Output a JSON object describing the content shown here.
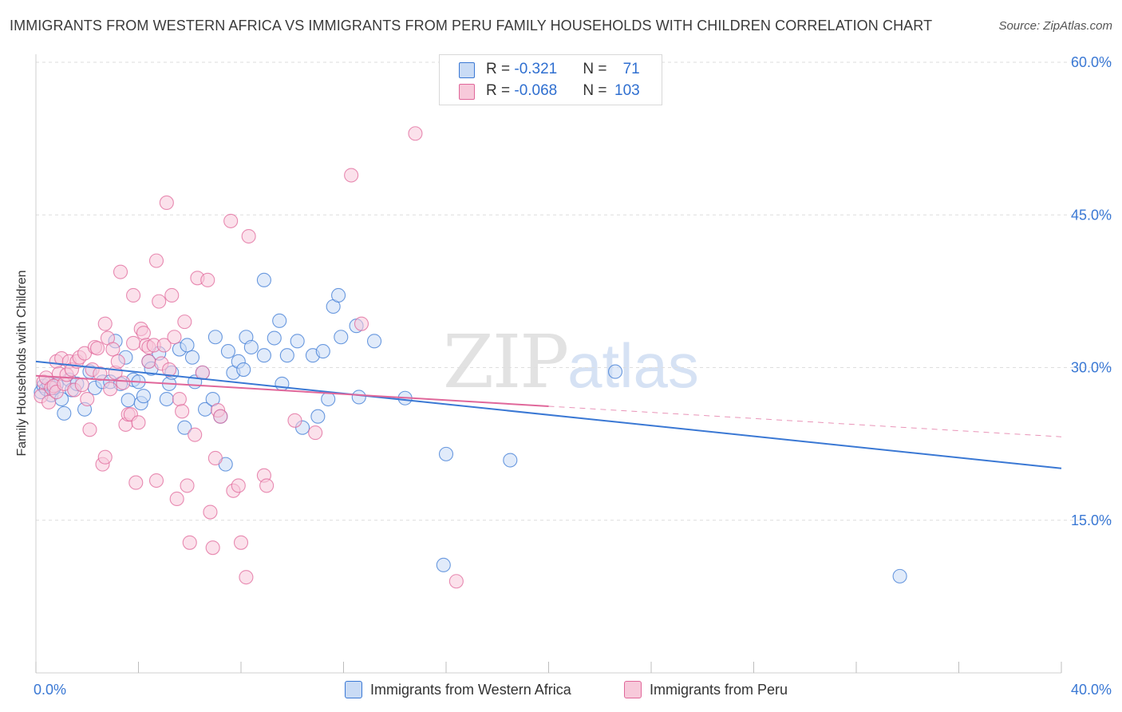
{
  "title": "IMMIGRANTS FROM WESTERN AFRICA VS IMMIGRANTS FROM PERU FAMILY HOUSEHOLDS WITH CHILDREN CORRELATION CHART",
  "source": "Source: ZipAtlas.com",
  "watermark": {
    "part1": "ZIP",
    "part2": "atlas"
  },
  "colors": {
    "blue": "#3a78d4",
    "blue_fill": "#c9dbf5",
    "pink": "#e0679a",
    "pink_fill": "#f7c9da",
    "tick_label": "#3a78d4",
    "grid": "#dcdcdc"
  },
  "legend_top": {
    "rows": [
      {
        "r_label": "R = ",
        "r_value": "-0.321",
        "n_label": "N = ",
        "n_value": "71",
        "color": "#3a78d4"
      },
      {
        "r_label": "R = ",
        "r_value": "-0.068",
        "n_label": "N = ",
        "n_value": "103",
        "color": "#e0679a"
      }
    ]
  },
  "chart_data": {
    "type": "scatter",
    "ylabel": "Family Households with Children",
    "xlim": [
      0,
      40
    ],
    "ylim": [
      0,
      60
    ],
    "y_ticks": [
      {
        "value": 15,
        "label": "15.0%"
      },
      {
        "value": 30,
        "label": "30.0%"
      },
      {
        "value": 45,
        "label": "45.0%"
      },
      {
        "value": 60,
        "label": "60.0%"
      }
    ],
    "x_tick_labels": [
      {
        "value": 0,
        "label": "0.0%"
      },
      {
        "value": 40,
        "label": "40.0%"
      }
    ],
    "grid": true,
    "legend": "bottom",
    "series": [
      {
        "name": "Immigrants from Western Africa",
        "color": "#3a78d4",
        "trend": {
          "x": [
            0,
            40
          ],
          "y": [
            30.6,
            20.1
          ],
          "style": "solid"
        },
        "points": [
          [
            0.2,
            27.6
          ],
          [
            0.3,
            28.2
          ],
          [
            0.4,
            27.9
          ],
          [
            0.5,
            28.4
          ],
          [
            0.6,
            27.3
          ],
          [
            0.7,
            28.0
          ],
          [
            0.8,
            28.3
          ],
          [
            1.0,
            26.9
          ],
          [
            1.1,
            25.5
          ],
          [
            1.3,
            28.8
          ],
          [
            1.4,
            27.8
          ],
          [
            1.6,
            28.4
          ],
          [
            1.9,
            25.9
          ],
          [
            2.1,
            29.6
          ],
          [
            2.3,
            28.0
          ],
          [
            2.6,
            28.6
          ],
          [
            2.9,
            28.6
          ],
          [
            3.1,
            32.6
          ],
          [
            3.3,
            28.4
          ],
          [
            3.5,
            31.0
          ],
          [
            3.6,
            26.8
          ],
          [
            3.8,
            28.8
          ],
          [
            4.0,
            28.6
          ],
          [
            4.1,
            26.5
          ],
          [
            4.2,
            27.2
          ],
          [
            4.4,
            30.6
          ],
          [
            4.5,
            29.9
          ],
          [
            4.8,
            31.4
          ],
          [
            5.1,
            26.9
          ],
          [
            5.2,
            28.4
          ],
          [
            5.3,
            29.5
          ],
          [
            5.6,
            31.8
          ],
          [
            5.8,
            24.1
          ],
          [
            5.9,
            32.2
          ],
          [
            6.1,
            31.0
          ],
          [
            6.2,
            28.6
          ],
          [
            6.5,
            29.5
          ],
          [
            6.6,
            25.9
          ],
          [
            6.9,
            26.9
          ],
          [
            7.0,
            33.0
          ],
          [
            7.2,
            25.2
          ],
          [
            7.4,
            20.5
          ],
          [
            7.5,
            31.6
          ],
          [
            7.7,
            29.5
          ],
          [
            7.9,
            30.6
          ],
          [
            8.1,
            29.8
          ],
          [
            8.2,
            33.0
          ],
          [
            8.4,
            32.0
          ],
          [
            8.9,
            31.2
          ],
          [
            8.9,
            38.6
          ],
          [
            9.3,
            32.9
          ],
          [
            9.5,
            34.6
          ],
          [
            9.6,
            28.4
          ],
          [
            9.8,
            31.2
          ],
          [
            10.2,
            32.6
          ],
          [
            10.4,
            24.1
          ],
          [
            10.8,
            31.2
          ],
          [
            11.0,
            25.2
          ],
          [
            11.2,
            31.6
          ],
          [
            11.4,
            26.9
          ],
          [
            11.6,
            36.0
          ],
          [
            11.8,
            37.1
          ],
          [
            11.9,
            33.0
          ],
          [
            12.5,
            34.1
          ],
          [
            12.6,
            27.1
          ],
          [
            13.2,
            32.6
          ],
          [
            14.4,
            27.0
          ],
          [
            15.9,
            10.6
          ],
          [
            16.0,
            21.5
          ],
          [
            18.5,
            20.9
          ],
          [
            22.6,
            29.6
          ],
          [
            33.7,
            9.5
          ]
        ]
      },
      {
        "name": "Immigrants from Peru",
        "color": "#e0679a",
        "trend": {
          "x": [
            0,
            20
          ],
          "y": [
            29.2,
            26.2
          ],
          "style": "solid",
          "extension": {
            "x": [
              20,
              40
            ],
            "y": [
              26.2,
              23.2
            ],
            "style": "dashed"
          }
        },
        "points": [
          [
            0.2,
            27.2
          ],
          [
            0.3,
            28.6
          ],
          [
            0.4,
            29.0
          ],
          [
            0.5,
            26.6
          ],
          [
            0.6,
            28.0
          ],
          [
            0.7,
            28.2
          ],
          [
            0.8,
            27.6
          ],
          [
            0.8,
            30.6
          ],
          [
            0.9,
            29.4
          ],
          [
            1.0,
            30.9
          ],
          [
            1.1,
            28.4
          ],
          [
            1.2,
            29.3
          ],
          [
            1.3,
            30.6
          ],
          [
            1.4,
            29.8
          ],
          [
            1.5,
            27.8
          ],
          [
            1.6,
            30.6
          ],
          [
            1.7,
            31.0
          ],
          [
            1.8,
            28.3
          ],
          [
            1.9,
            31.4
          ],
          [
            2.0,
            26.9
          ],
          [
            2.1,
            23.9
          ],
          [
            2.2,
            29.8
          ],
          [
            2.3,
            32.0
          ],
          [
            2.4,
            31.9
          ],
          [
            2.5,
            29.4
          ],
          [
            2.6,
            20.5
          ],
          [
            2.7,
            34.3
          ],
          [
            2.7,
            21.2
          ],
          [
            2.8,
            32.9
          ],
          [
            2.9,
            27.9
          ],
          [
            3.0,
            31.8
          ],
          [
            3.1,
            29.5
          ],
          [
            3.2,
            30.6
          ],
          [
            3.3,
            39.4
          ],
          [
            3.4,
            28.5
          ],
          [
            3.5,
            24.4
          ],
          [
            3.6,
            25.4
          ],
          [
            3.7,
            25.4
          ],
          [
            3.8,
            37.1
          ],
          [
            3.8,
            32.4
          ],
          [
            3.9,
            18.7
          ],
          [
            4.0,
            24.6
          ],
          [
            4.1,
            33.8
          ],
          [
            4.2,
            33.4
          ],
          [
            4.3,
            32.2
          ],
          [
            4.4,
            30.6
          ],
          [
            4.4,
            32.0
          ],
          [
            4.6,
            32.2
          ],
          [
            4.7,
            40.5
          ],
          [
            4.7,
            18.9
          ],
          [
            4.8,
            36.5
          ],
          [
            4.9,
            30.4
          ],
          [
            5.0,
            32.2
          ],
          [
            5.1,
            46.2
          ],
          [
            5.2,
            29.8
          ],
          [
            5.3,
            37.1
          ],
          [
            5.4,
            33.0
          ],
          [
            5.5,
            17.1
          ],
          [
            5.6,
            26.9
          ],
          [
            5.7,
            25.7
          ],
          [
            5.8,
            34.5
          ],
          [
            5.9,
            18.4
          ],
          [
            6.0,
            12.8
          ],
          [
            6.2,
            23.4
          ],
          [
            6.3,
            38.8
          ],
          [
            6.5,
            29.5
          ],
          [
            6.7,
            38.6
          ],
          [
            6.8,
            15.8
          ],
          [
            6.9,
            12.3
          ],
          [
            7.0,
            21.1
          ],
          [
            7.1,
            25.8
          ],
          [
            7.2,
            25.2
          ],
          [
            7.6,
            44.4
          ],
          [
            7.7,
            17.9
          ],
          [
            7.9,
            18.4
          ],
          [
            8.0,
            12.8
          ],
          [
            8.2,
            9.4
          ],
          [
            8.3,
            42.9
          ],
          [
            8.9,
            19.4
          ],
          [
            9.0,
            18.4
          ],
          [
            10.1,
            24.8
          ],
          [
            10.9,
            23.6
          ],
          [
            12.3,
            48.9
          ],
          [
            12.7,
            34.3
          ],
          [
            14.8,
            53.0
          ],
          [
            16.4,
            9.0
          ]
        ]
      }
    ]
  }
}
